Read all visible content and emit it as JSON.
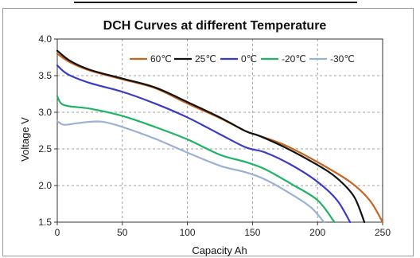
{
  "chart_data": {
    "type": "line",
    "title": "DCH Curves at different Temperature",
    "xlabel": "Capacity  Ah",
    "ylabel": "Voltage  V",
    "xlim": [
      0,
      250
    ],
    "ylim": [
      1.5,
      4.0
    ],
    "x_ticks": [
      "0",
      "50",
      "100",
      "150",
      "200",
      "250"
    ],
    "y_ticks": [
      "1.5",
      "2.0",
      "2.5",
      "3.0",
      "3.5",
      "4.0"
    ],
    "grid": true,
    "legend_position": "top-right",
    "series": [
      {
        "name": "60℃",
        "color": "#c8641e",
        "points": [
          [
            0,
            3.8
          ],
          [
            10,
            3.68
          ],
          [
            25,
            3.57
          ],
          [
            50,
            3.45
          ],
          [
            75,
            3.33
          ],
          [
            100,
            3.12
          ],
          [
            125,
            2.92
          ],
          [
            145,
            2.74
          ],
          [
            155,
            2.68
          ],
          [
            175,
            2.55
          ],
          [
            200,
            2.32
          ],
          [
            225,
            2.05
          ],
          [
            240,
            1.8
          ],
          [
            250,
            1.5
          ]
        ]
      },
      {
        "name": "25℃",
        "color": "#111111",
        "points": [
          [
            0,
            3.84
          ],
          [
            10,
            3.7
          ],
          [
            25,
            3.58
          ],
          [
            50,
            3.46
          ],
          [
            75,
            3.34
          ],
          [
            100,
            3.14
          ],
          [
            125,
            2.93
          ],
          [
            145,
            2.74
          ],
          [
            155,
            2.68
          ],
          [
            175,
            2.52
          ],
          [
            200,
            2.28
          ],
          [
            215,
            2.1
          ],
          [
            228,
            1.85
          ],
          [
            236,
            1.5
          ]
        ]
      },
      {
        "name": "0℃",
        "color": "#3a3ac8",
        "points": [
          [
            0,
            3.64
          ],
          [
            8,
            3.52
          ],
          [
            25,
            3.4
          ],
          [
            50,
            3.28
          ],
          [
            75,
            3.12
          ],
          [
            100,
            2.93
          ],
          [
            125,
            2.7
          ],
          [
            145,
            2.52
          ],
          [
            160,
            2.45
          ],
          [
            180,
            2.28
          ],
          [
            200,
            2.05
          ],
          [
            215,
            1.8
          ],
          [
            225,
            1.5
          ]
        ]
      },
      {
        "name": "-20℃",
        "color": "#1eb464",
        "points": [
          [
            0,
            3.22
          ],
          [
            3,
            3.12
          ],
          [
            10,
            3.08
          ],
          [
            25,
            3.05
          ],
          [
            50,
            2.95
          ],
          [
            75,
            2.8
          ],
          [
            100,
            2.63
          ],
          [
            125,
            2.42
          ],
          [
            145,
            2.32
          ],
          [
            160,
            2.22
          ],
          [
            180,
            2.02
          ],
          [
            200,
            1.8
          ],
          [
            213,
            1.5
          ]
        ]
      },
      {
        "name": "-30℃",
        "color": "#9ab0d4",
        "points": [
          [
            0,
            2.88
          ],
          [
            5,
            2.83
          ],
          [
            15,
            2.85
          ],
          [
            25,
            2.87
          ],
          [
            35,
            2.87
          ],
          [
            50,
            2.8
          ],
          [
            75,
            2.64
          ],
          [
            100,
            2.45
          ],
          [
            125,
            2.27
          ],
          [
            145,
            2.18
          ],
          [
            160,
            2.08
          ],
          [
            180,
            1.88
          ],
          [
            195,
            1.7
          ],
          [
            205,
            1.5
          ]
        ]
      }
    ]
  }
}
